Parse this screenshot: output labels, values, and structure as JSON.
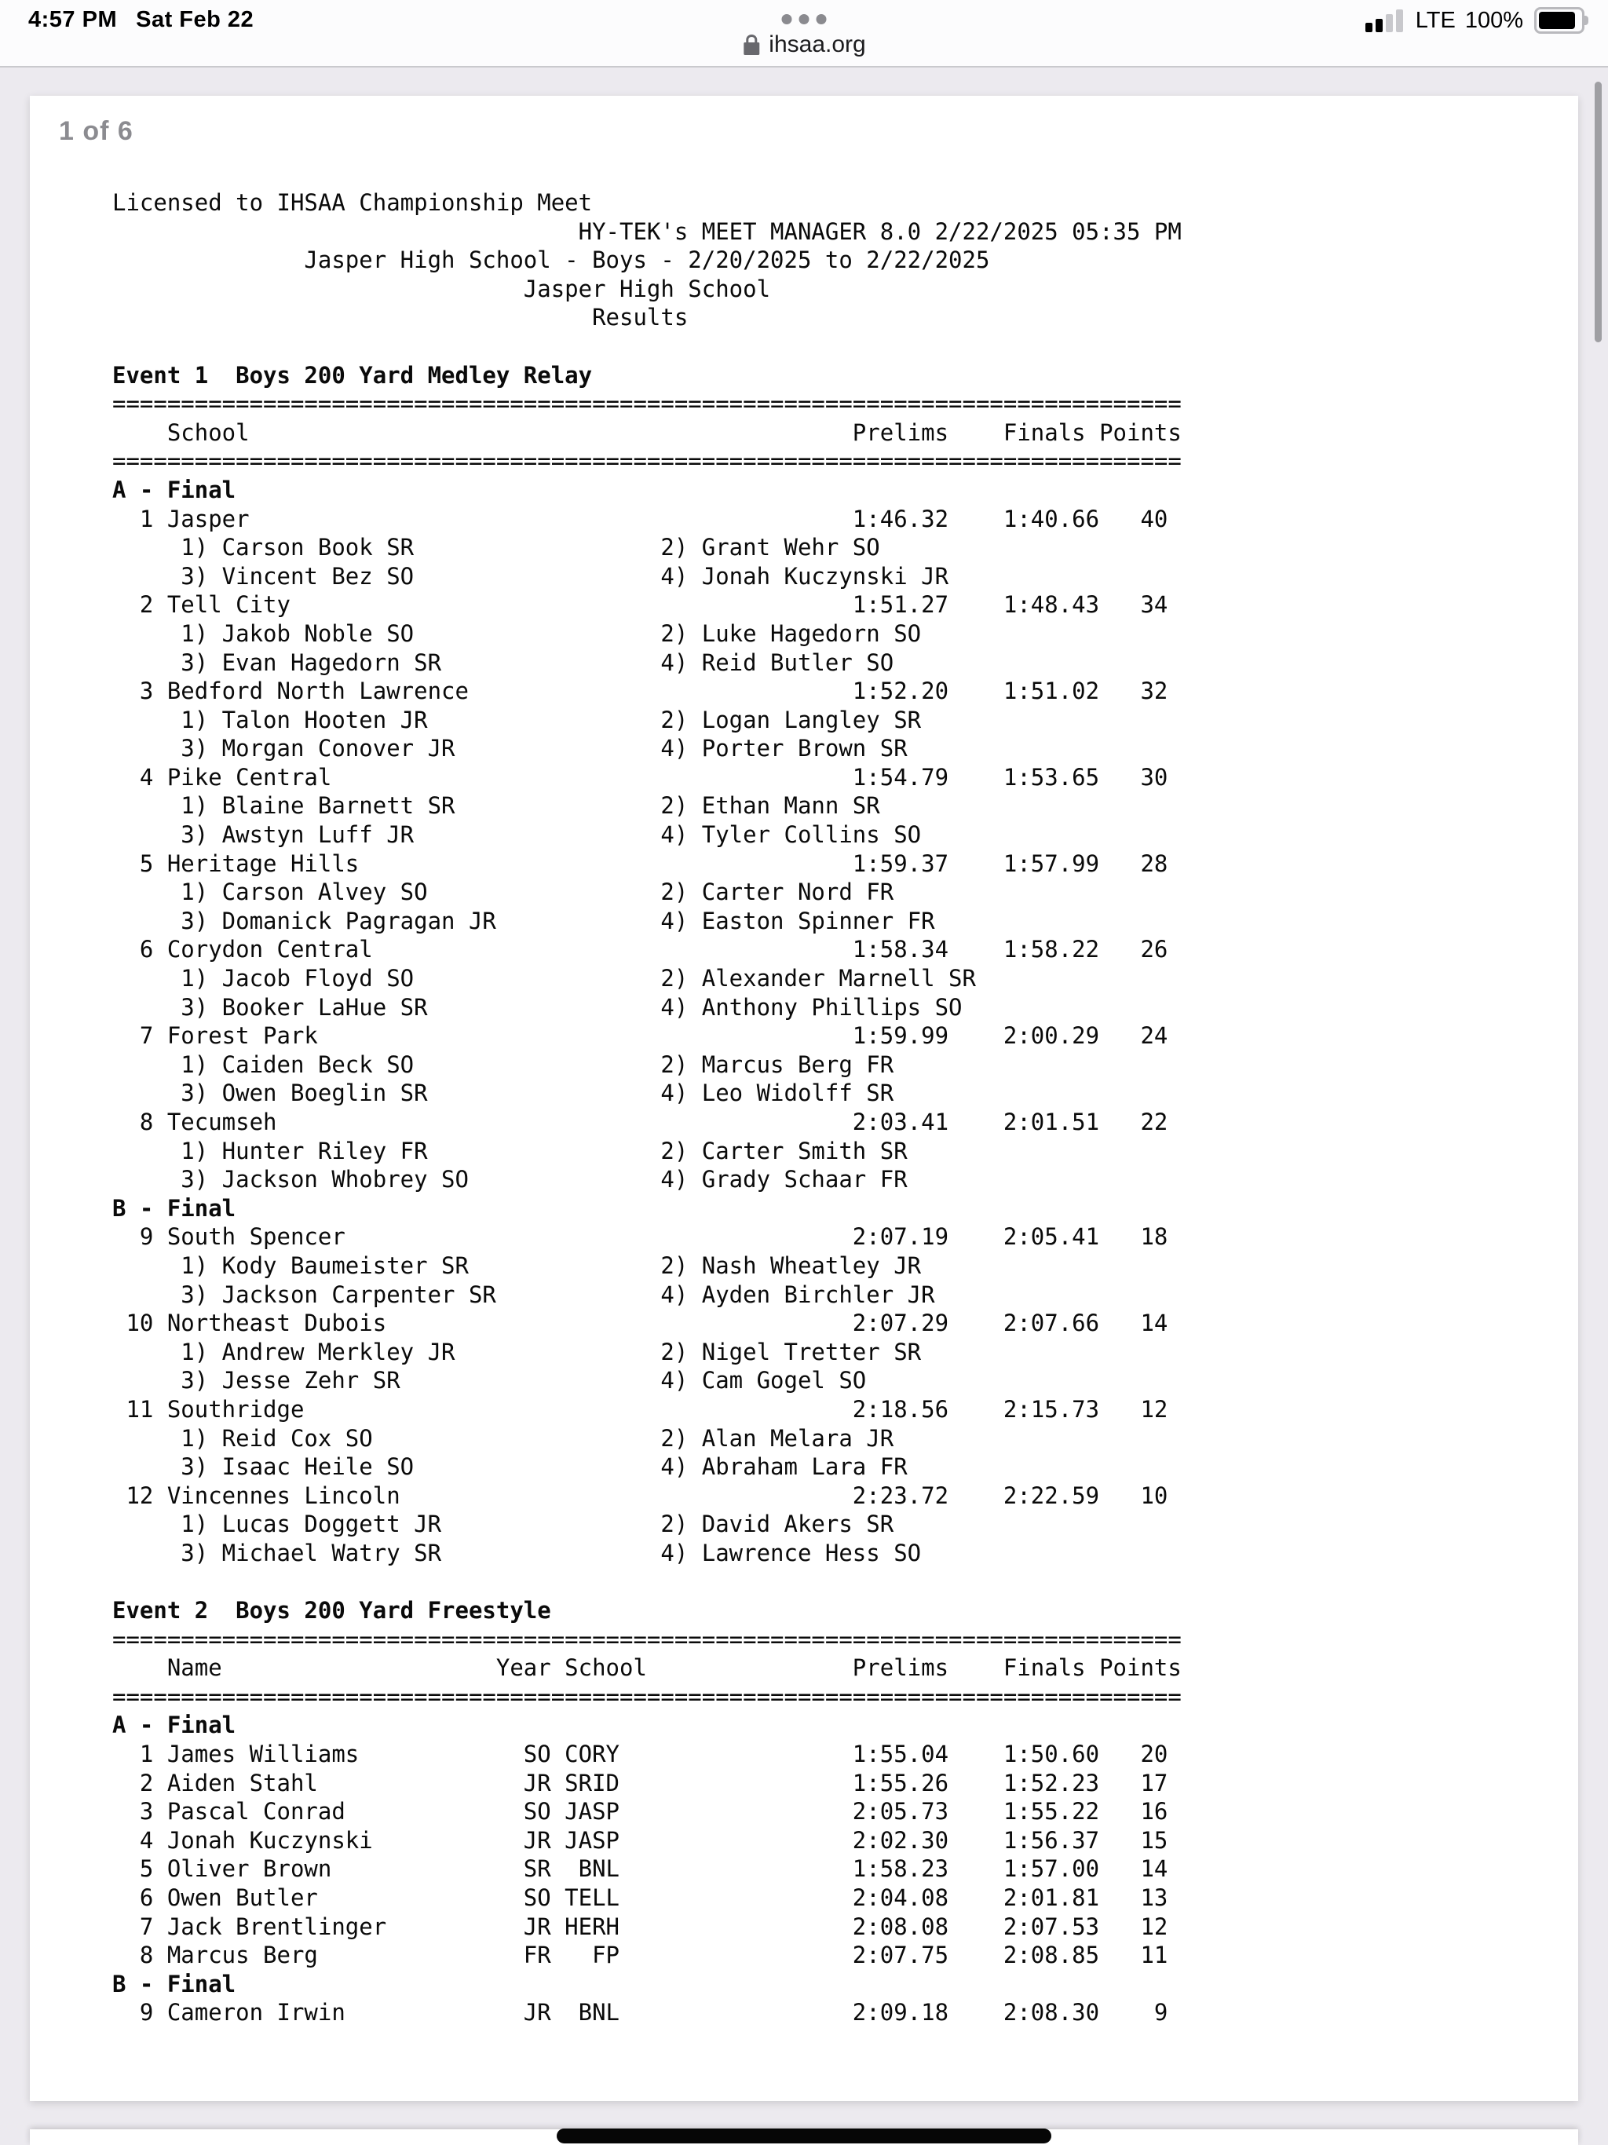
{
  "status_bar": {
    "time": "4:57 PM",
    "date": "Sat Feb 22",
    "carrier": "LTE",
    "battery_percent": "100%"
  },
  "browser": {
    "url": "ihsaa.org",
    "page_indicator": "1 of 6"
  },
  "icons": {
    "cellular": "cellular-signal-icon (2 of 4 bars)",
    "lock": "lock-icon",
    "tab_actions": "ellipsis-dots-icon",
    "battery": "battery-full-icon"
  },
  "colors": {
    "toolbar_bg": "#fcfcfd",
    "content_bg": "#eceaef",
    "page_bg": "#ffffff",
    "muted_gray": "#8a8a8f",
    "text": "#0a0a0a",
    "home_indicator": "#060606"
  },
  "document": {
    "line_width": 78,
    "page_header": [
      {
        "text": "Licensed to IHSAA Championship Meet",
        "align": "left"
      },
      {
        "text": "HY-TEK's MEET MANAGER 8.0 2/22/2025 05:35 PM",
        "align": "right"
      },
      {
        "text": "Jasper High School - Boys - 2/20/2025 to 2/22/2025",
        "align": "center"
      },
      {
        "text": "Jasper High School",
        "align": "center"
      },
      {
        "text": "Results",
        "align": "center"
      }
    ],
    "events": [
      {
        "title": "Event 1  Boys 200 Yard Medley Relay",
        "type": "relay",
        "columns": {
          "label": "School",
          "prelims": "Prelims",
          "finals": "Finals",
          "points": "Points"
        },
        "sections": [
          {
            "label": "A - Final",
            "entries": [
              {
                "rank": "1",
                "team": "Jasper",
                "prelims": "1:46.32",
                "finals": "1:40.66",
                "points": "40",
                "swimmers": [
                  "Carson Book SR",
                  "Grant Wehr SO",
                  "Vincent Bez SO",
                  "Jonah Kuczynski JR"
                ]
              },
              {
                "rank": "2",
                "team": "Tell City",
                "prelims": "1:51.27",
                "finals": "1:48.43",
                "points": "34",
                "swimmers": [
                  "Jakob Noble SO",
                  "Luke Hagedorn SO",
                  "Evan Hagedorn SR",
                  "Reid Butler SO"
                ]
              },
              {
                "rank": "3",
                "team": "Bedford North Lawrence",
                "prelims": "1:52.20",
                "finals": "1:51.02",
                "points": "32",
                "swimmers": [
                  "Talon Hooten JR",
                  "Logan Langley SR",
                  "Morgan Conover JR",
                  "Porter Brown SR"
                ]
              },
              {
                "rank": "4",
                "team": "Pike Central",
                "prelims": "1:54.79",
                "finals": "1:53.65",
                "points": "30",
                "swimmers": [
                  "Blaine Barnett SR",
                  "Ethan Mann SR",
                  "Awstyn Luff JR",
                  "Tyler Collins SO"
                ]
              },
              {
                "rank": "5",
                "team": "Heritage Hills",
                "prelims": "1:59.37",
                "finals": "1:57.99",
                "points": "28",
                "swimmers": [
                  "Carson Alvey SO",
                  "Carter Nord FR",
                  "Domanick Pagragan JR",
                  "Easton Spinner FR"
                ]
              },
              {
                "rank": "6",
                "team": "Corydon Central",
                "prelims": "1:58.34",
                "finals": "1:58.22",
                "points": "26",
                "swimmers": [
                  "Jacob Floyd SO",
                  "Alexander Marnell SR",
                  "Booker LaHue SR",
                  "Anthony Phillips SO"
                ]
              },
              {
                "rank": "7",
                "team": "Forest Park",
                "prelims": "1:59.99",
                "finals": "2:00.29",
                "points": "24",
                "swimmers": [
                  "Caiden Beck SO",
                  "Marcus Berg FR",
                  "Owen Boeglin SR",
                  "Leo Widolff SR"
                ]
              },
              {
                "rank": "8",
                "team": "Tecumseh",
                "prelims": "2:03.41",
                "finals": "2:01.51",
                "points": "22",
                "swimmers": [
                  "Hunter Riley FR",
                  "Carter Smith SR",
                  "Jackson Whobrey SO",
                  "Grady Schaar FR"
                ]
              }
            ]
          },
          {
            "label": "B - Final",
            "entries": [
              {
                "rank": "9",
                "team": "South Spencer",
                "prelims": "2:07.19",
                "finals": "2:05.41",
                "points": "18",
                "swimmers": [
                  "Kody Baumeister SR",
                  "Nash Wheatley JR",
                  "Jackson Carpenter SR",
                  "Ayden Birchler JR"
                ]
              },
              {
                "rank": "10",
                "team": "Northeast Dubois",
                "prelims": "2:07.29",
                "finals": "2:07.66",
                "points": "14",
                "swimmers": [
                  "Andrew Merkley JR",
                  "Nigel Tretter SR",
                  "Jesse Zehr SR",
                  "Cam Gogel SO"
                ]
              },
              {
                "rank": "11",
                "team": "Southridge",
                "prelims": "2:18.56",
                "finals": "2:15.73",
                "points": "12",
                "swimmers": [
                  "Reid Cox SO",
                  "Alan Melara JR",
                  "Isaac Heile SO",
                  "Abraham Lara FR"
                ]
              },
              {
                "rank": "12",
                "team": "Vincennes Lincoln",
                "prelims": "2:23.72",
                "finals": "2:22.59",
                "points": "10",
                "swimmers": [
                  "Lucas Doggett JR",
                  "David Akers SR",
                  "Michael Watry SR",
                  "Lawrence Hess SO"
                ]
              }
            ]
          }
        ]
      },
      {
        "title": "Event 2  Boys 200 Yard Freestyle",
        "type": "individual",
        "columns": {
          "label": "Name",
          "year": "Year",
          "school": "School",
          "prelims": "Prelims",
          "finals": "Finals",
          "points": "Points"
        },
        "sections": [
          {
            "label": "A - Final",
            "entries": [
              {
                "rank": "1",
                "name": "James Williams",
                "year": "SO",
                "school": "CORY",
                "prelims": "1:55.04",
                "finals": "1:50.60",
                "points": "20"
              },
              {
                "rank": "2",
                "name": "Aiden Stahl",
                "year": "JR",
                "school": "SRID",
                "prelims": "1:55.26",
                "finals": "1:52.23",
                "points": "17"
              },
              {
                "rank": "3",
                "name": "Pascal Conrad",
                "year": "SO",
                "school": "JASP",
                "prelims": "2:05.73",
                "finals": "1:55.22",
                "points": "16"
              },
              {
                "rank": "4",
                "name": "Jonah Kuczynski",
                "year": "JR",
                "school": "JASP",
                "prelims": "2:02.30",
                "finals": "1:56.37",
                "points": "15"
              },
              {
                "rank": "5",
                "name": "Oliver Brown",
                "year": "SR",
                "school": "BNL",
                "prelims": "1:58.23",
                "finals": "1:57.00",
                "points": "14"
              },
              {
                "rank": "6",
                "name": "Owen Butler",
                "year": "SO",
                "school": "TELL",
                "prelims": "2:04.08",
                "finals": "2:01.81",
                "points": "13"
              },
              {
                "rank": "7",
                "name": "Jack Brentlinger",
                "year": "JR",
                "school": "HERH",
                "prelims": "2:08.08",
                "finals": "2:07.53",
                "points": "12"
              },
              {
                "rank": "8",
                "name": "Marcus Berg",
                "year": "FR",
                "school": "FP",
                "prelims": "2:07.75",
                "finals": "2:08.85",
                "points": "11"
              }
            ]
          },
          {
            "label": "B - Final",
            "entries": [
              {
                "rank": "9",
                "name": "Cameron Irwin",
                "year": "JR",
                "school": "BNL",
                "prelims": "2:09.18",
                "finals": "2:08.30",
                "points": "9"
              }
            ]
          }
        ]
      }
    ]
  }
}
